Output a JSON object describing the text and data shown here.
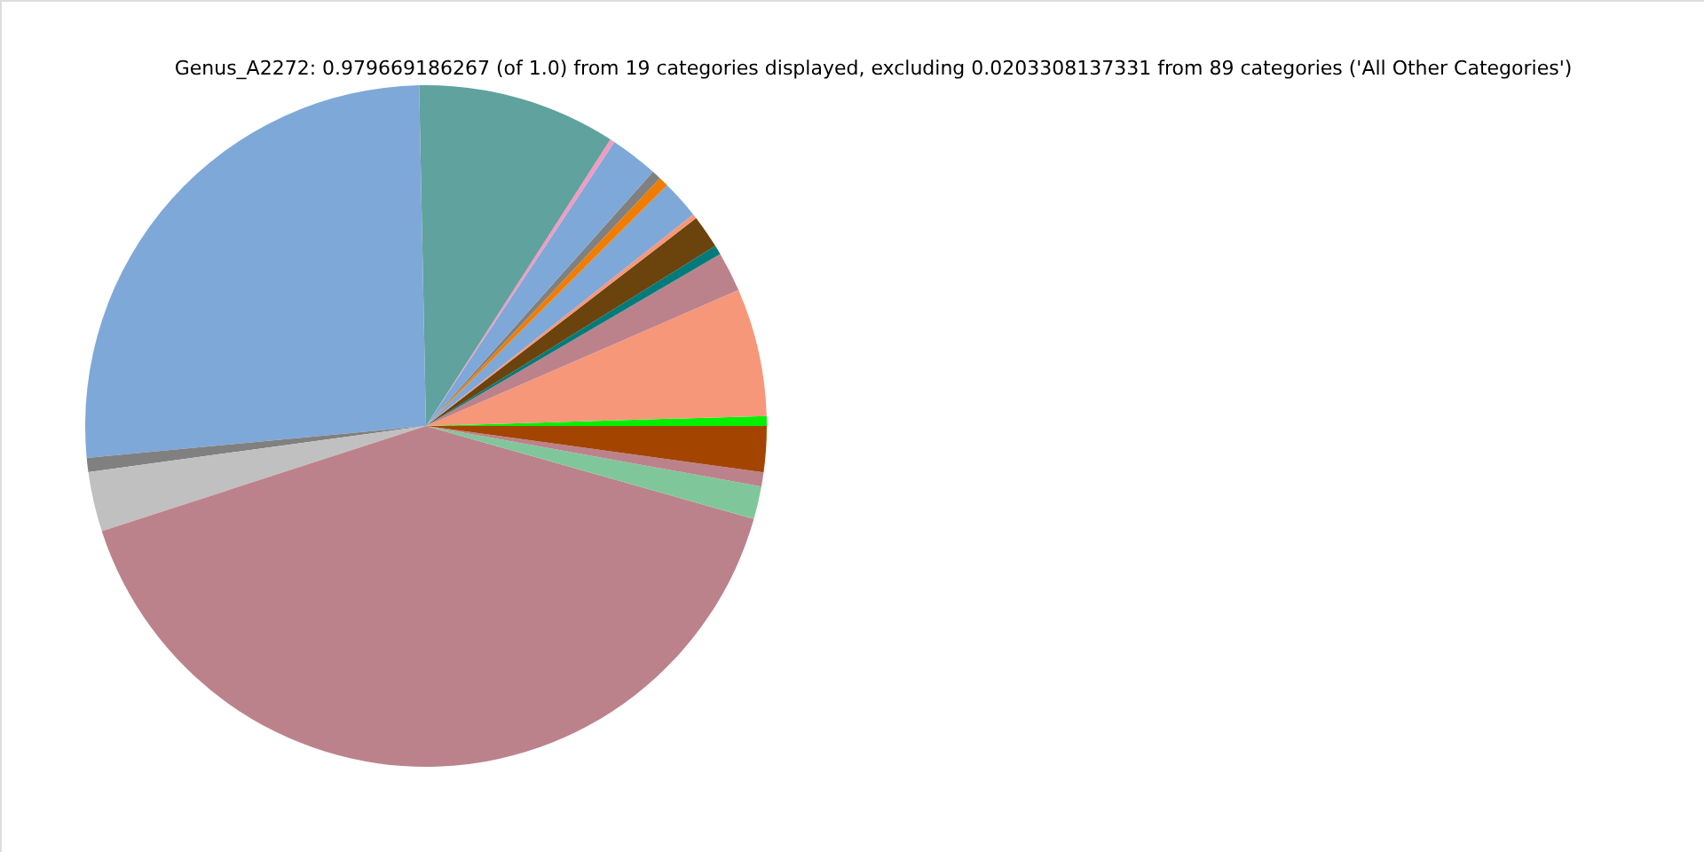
{
  "chart_data": {
    "type": "pie",
    "title": "Genus_A2272: 0.979669186267 (of 1.0) from 19 categories displayed, excluding 0.0203308137331 from 89 categories ('All Other Categories')",
    "categories": [
      null,
      null,
      null,
      null,
      null,
      null,
      null,
      null,
      null,
      null,
      null,
      null,
      null,
      null,
      null,
      null,
      null,
      null,
      null
    ],
    "values": [
      0.47,
      6.06,
      1.89,
      0.44,
      1.58,
      0.22,
      1.83,
      0.47,
      0.44,
      2.28,
      0.22,
      9.42,
      26.17,
      0.67,
      2.83,
      40.61,
      1.56,
      0.67,
      2.17
    ],
    "colors": [
      "#00f000",
      "#f7977a",
      "#bc828b",
      "#007b7b",
      "#6b430d",
      "#f7977a",
      "#7ea8d8",
      "#f07d00",
      "#808080",
      "#7ea8d8",
      "#f49ac2",
      "#5fa29e",
      "#7ea8d8",
      "#808080",
      "#c0c0c0",
      "#bc828b",
      "#7fc79a",
      "#bc828b",
      "#a34500"
    ]
  }
}
